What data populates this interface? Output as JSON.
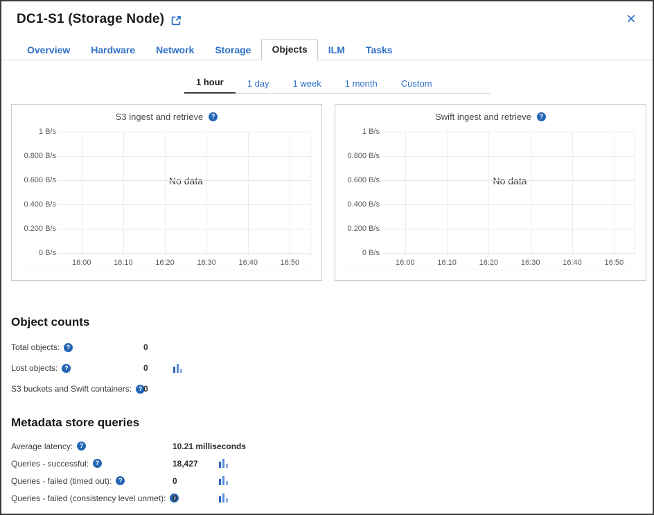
{
  "header": {
    "title": "DC1-S1 (Storage Node)",
    "close_label": "×"
  },
  "tabs": {
    "items": [
      {
        "label": "Overview",
        "active": false
      },
      {
        "label": "Hardware",
        "active": false
      },
      {
        "label": "Network",
        "active": false
      },
      {
        "label": "Storage",
        "active": false
      },
      {
        "label": "Objects",
        "active": true
      },
      {
        "label": "ILM",
        "active": false
      },
      {
        "label": "Tasks",
        "active": false
      }
    ]
  },
  "time_range": {
    "items": [
      {
        "label": "1 hour",
        "active": true
      },
      {
        "label": "1 day",
        "active": false
      },
      {
        "label": "1 week",
        "active": false
      },
      {
        "label": "1 month",
        "active": false
      },
      {
        "label": "Custom",
        "active": false
      }
    ]
  },
  "chart_data": [
    {
      "type": "line",
      "title": "S3 ingest and retrieve",
      "no_data_message": "No data",
      "y_ticks": [
        "1 B/s",
        "0.800 B/s",
        "0.600 B/s",
        "0.400 B/s",
        "0.200 B/s",
        "0 B/s"
      ],
      "x_ticks": [
        "16:00",
        "16:10",
        "16:20",
        "16:30",
        "16:40",
        "16:50"
      ],
      "ylim": [
        0,
        1
      ],
      "y_unit": "B/s",
      "series": [],
      "grid": true,
      "legend": "none"
    },
    {
      "type": "line",
      "title": "Swift ingest and retrieve",
      "no_data_message": "No data",
      "y_ticks": [
        "1 B/s",
        "0.800 B/s",
        "0.600 B/s",
        "0.400 B/s",
        "0.200 B/s",
        "0 B/s"
      ],
      "x_ticks": [
        "16:00",
        "16:10",
        "16:20",
        "16:30",
        "16:40",
        "16:50"
      ],
      "ylim": [
        0,
        1
      ],
      "y_unit": "B/s",
      "series": [],
      "grid": true,
      "legend": "none"
    }
  ],
  "sections": {
    "object_counts": {
      "heading": "Object counts",
      "rows": [
        {
          "label": "Total objects:",
          "value": "0",
          "has_chart": false
        },
        {
          "label": "Lost objects:",
          "value": "0",
          "has_chart": true
        },
        {
          "label": "S3 buckets and Swift containers:",
          "value": "0",
          "has_chart": false
        }
      ]
    },
    "metadata_store_queries": {
      "heading": "Metadata store queries",
      "rows": [
        {
          "label": "Average latency:",
          "value": "10.21 milliseconds",
          "has_chart": false
        },
        {
          "label": "Queries - successful:",
          "value": "18,427",
          "has_chart": true
        },
        {
          "label": "Queries - failed (timed out):",
          "value": "0",
          "has_chart": true
        },
        {
          "label": "Queries - failed (consistency level unmet):",
          "value": "0",
          "has_chart": true
        }
      ]
    }
  },
  "colors": {
    "accent_blue": "#2e70c8",
    "help_icon_blue": "#2565b4",
    "active_tab_text": "#2b2b2b",
    "bar_icon_blues": [
      "#2e62b8",
      "#5b8fe0",
      "#8fb2ea"
    ]
  }
}
